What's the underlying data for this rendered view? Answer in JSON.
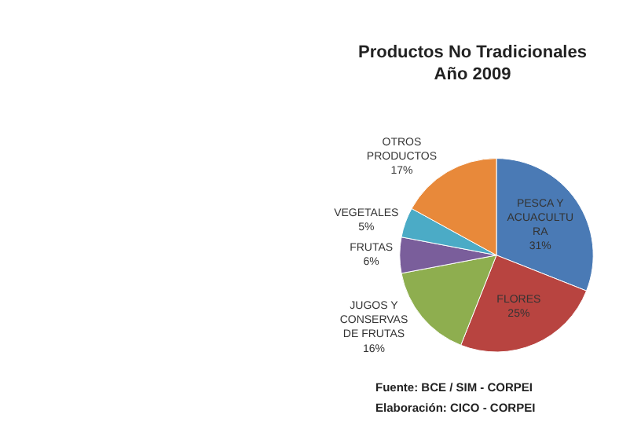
{
  "chart_data": {
    "type": "pie",
    "title": "Productos No Tradicionales\nAño 2009",
    "categories": [
      "PESCA Y\nACUACULTU\nRA",
      "FLORES",
      "JUGOS Y\nCONSERVAS\nDE FRUTAS",
      "FRUTAS",
      "VEGETALES",
      "OTROS\nPRODUCTOS"
    ],
    "values": [
      31,
      25,
      16,
      6,
      5,
      17
    ],
    "value_labels": [
      "31%",
      "25%",
      "16%",
      "6%",
      "5%",
      "17%"
    ],
    "colors": [
      "#4a7ab5",
      "#b84440",
      "#8eae4f",
      "#7a5e9b",
      "#4babc6",
      "#e8893a"
    ],
    "legend": false,
    "annotations": [
      "Fuente: BCE / SIM - CORPEI",
      "Elaboración: CICO - CORPEI"
    ]
  }
}
